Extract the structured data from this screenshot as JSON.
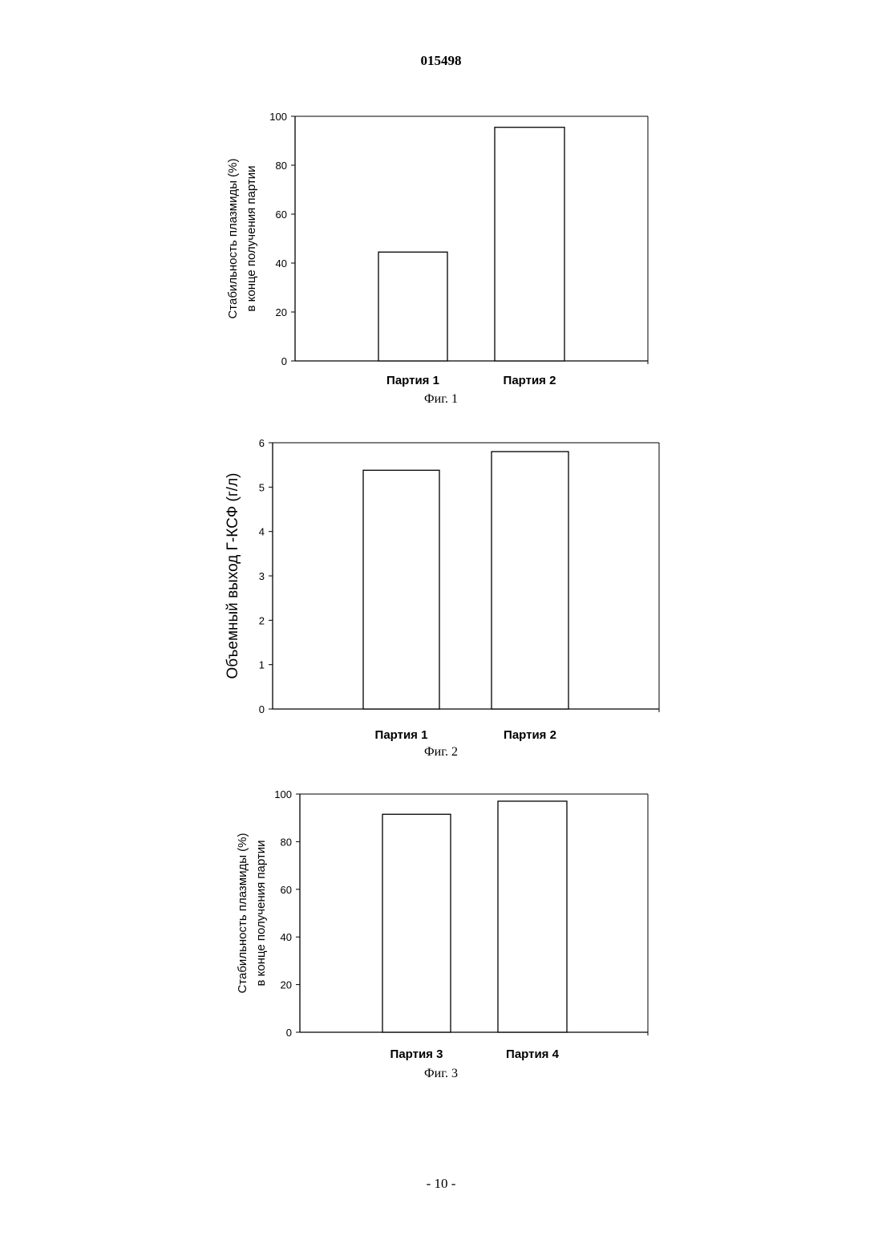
{
  "header": {
    "doc_number": "015498"
  },
  "footer": {
    "page_number": "- 10 -"
  },
  "figures": [
    {
      "caption": "Фиг. 1"
    },
    {
      "caption": "Фиг. 2"
    },
    {
      "caption": "Фиг. 3"
    }
  ],
  "chart_data": [
    {
      "type": "bar",
      "categories": [
        "Партия 1",
        "Партия 2"
      ],
      "values": [
        44.5,
        95.5
      ],
      "ylabel_lines": [
        "Стабильность плазмиды (%)",
        "в конце получения партии"
      ],
      "yticks": [
        "0",
        "20",
        "40",
        "60",
        "80",
        "100"
      ],
      "ylim": [
        0,
        100
      ],
      "grid": false,
      "legend": "none"
    },
    {
      "type": "bar",
      "categories": [
        "Партия 1",
        "Партия 2"
      ],
      "values": [
        5.38,
        5.8
      ],
      "ylabel_lines": [
        "Объемный выход Г-КСФ (г/л)"
      ],
      "yticks": [
        "0",
        "1",
        "2",
        "3",
        "4",
        "5",
        "6"
      ],
      "ylim": [
        0,
        6
      ],
      "grid": false,
      "legend": "none"
    },
    {
      "type": "bar",
      "categories": [
        "Партия 3",
        "Партия 4"
      ],
      "values": [
        91.5,
        97
      ],
      "ylabel_lines": [
        "Стабильность плазмиды (%)",
        "в конце получения партии"
      ],
      "yticks": [
        "0",
        "20",
        "40",
        "60",
        "80",
        "100"
      ],
      "ylim": [
        0,
        100
      ],
      "grid": false,
      "legend": "none"
    }
  ]
}
